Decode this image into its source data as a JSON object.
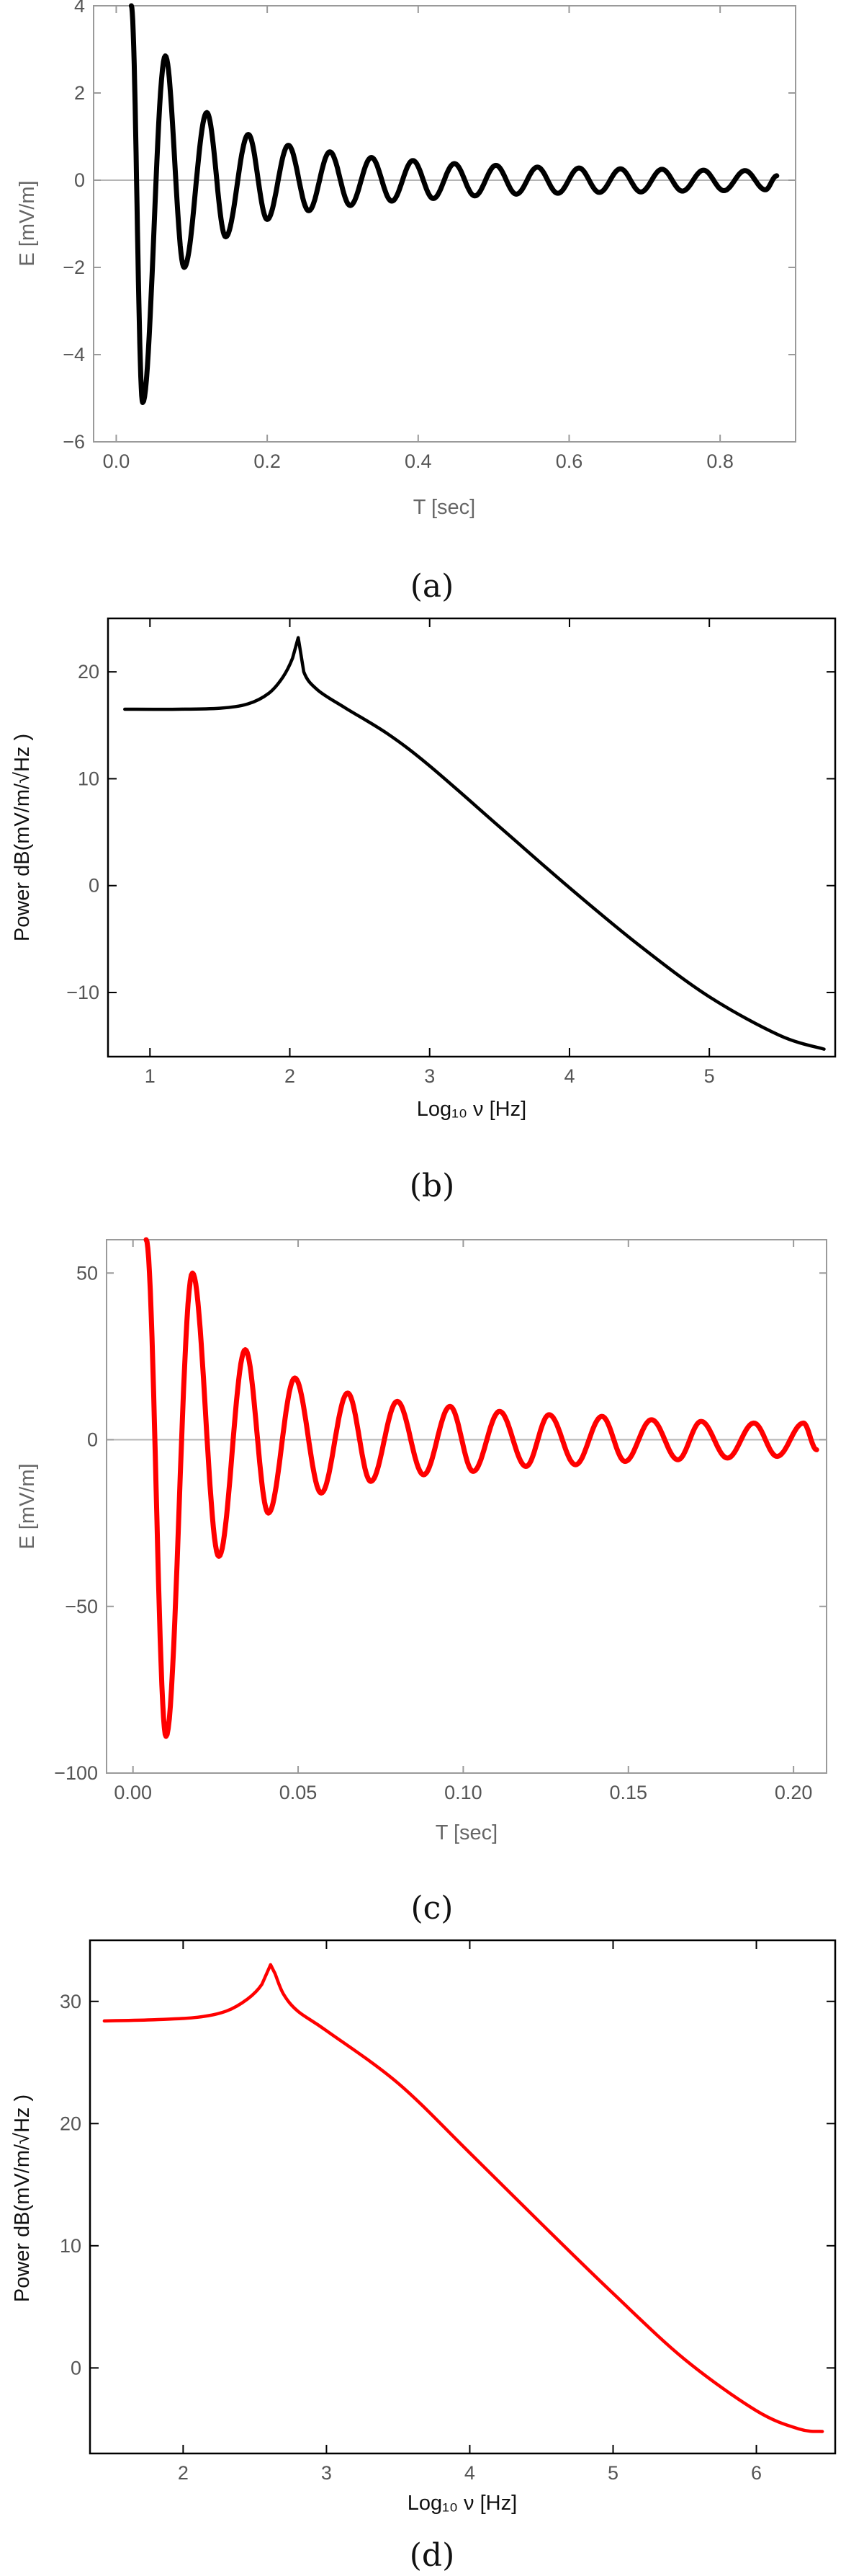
{
  "chart_data": [
    {
      "type": "line",
      "panel": "a",
      "caption": "(a)",
      "xlabel": "T [sec]",
      "ylabel": "E [mV/m]",
      "xlim": [
        -0.03,
        0.9
      ],
      "ylim": [
        -6,
        4
      ],
      "xticks": [
        "0.0",
        "0.2",
        "0.4",
        "0.6",
        "0.8"
      ],
      "xtick_values": [
        0.0,
        0.2,
        0.4,
        0.6,
        0.8
      ],
      "yticks": [
        "−6",
        "−4",
        "−2",
        "0",
        "2",
        "4"
      ],
      "ytick_values": [
        -6,
        -4,
        -2,
        0,
        2,
        4
      ],
      "color": "#000000",
      "series": [
        {
          "name": "E(T)",
          "model": "damped-oscillation",
          "x": [
            0.02,
            0.035,
            0.065,
            0.09,
            0.12,
            0.145,
            0.175,
            0.2,
            0.228,
            0.255,
            0.283,
            0.31,
            0.338,
            0.365,
            0.393,
            0.42,
            0.448,
            0.475,
            0.503,
            0.53,
            0.558,
            0.585,
            0.613,
            0.64,
            0.668,
            0.695,
            0.723,
            0.75,
            0.778,
            0.805,
            0.833,
            0.86,
            0.875
          ],
          "y": [
            4.0,
            -5.1,
            2.85,
            -2.0,
            1.55,
            -1.3,
            1.05,
            -0.9,
            0.8,
            -0.7,
            0.65,
            -0.58,
            0.52,
            -0.48,
            0.45,
            -0.42,
            0.38,
            -0.36,
            0.34,
            -0.32,
            0.3,
            -0.3,
            0.28,
            -0.28,
            0.26,
            -0.27,
            0.25,
            -0.25,
            0.23,
            -0.24,
            0.22,
            -0.22,
            0.1
          ]
        }
      ]
    },
    {
      "type": "line",
      "panel": "b",
      "caption": "(b)",
      "xlabel": "Log₁₀ ν [Hz]",
      "ylabel": "Power dB(mV/m/√Hz )",
      "xlim": [
        0.7,
        5.9
      ],
      "ylim": [
        -16,
        25
      ],
      "xticks": [
        "1",
        "2",
        "3",
        "4",
        "5"
      ],
      "xtick_values": [
        1,
        2,
        3,
        4,
        5
      ],
      "yticks": [
        "−10",
        "0",
        "10",
        "20"
      ],
      "ytick_values": [
        -10,
        0,
        10,
        20
      ],
      "color": "#000000",
      "series": [
        {
          "name": "Power",
          "x": [
            0.82,
            1.2,
            1.5,
            1.7,
            1.85,
            1.95,
            2.02,
            2.06,
            2.1,
            2.2,
            2.4,
            2.7,
            3.0,
            3.5,
            4.0,
            4.5,
            5.0,
            5.5,
            5.82
          ],
          "y": [
            16.5,
            16.5,
            16.6,
            17.0,
            18.0,
            19.5,
            21.3,
            23.2,
            20.0,
            18.3,
            16.6,
            14.2,
            11.2,
            5.5,
            -0.2,
            -5.6,
            -10.4,
            -14.0,
            -15.3
          ]
        }
      ]
    },
    {
      "type": "line",
      "panel": "c",
      "caption": "(c)",
      "xlabel": "T [sec]",
      "ylabel": "E [mV/m]",
      "xlim": [
        -0.008,
        0.21
      ],
      "ylim": [
        -100,
        60
      ],
      "xticks": [
        "0.00",
        "0.05",
        "0.10",
        "0.15",
        "0.20"
      ],
      "xtick_values": [
        0.0,
        0.05,
        0.1,
        0.15,
        0.2
      ],
      "yticks": [
        "−100",
        "−50",
        "0",
        "50"
      ],
      "ytick_values": [
        -100,
        -50,
        0,
        50
      ],
      "color": "#ff0000",
      "series": [
        {
          "name": "E(T)",
          "model": "damped-oscillation",
          "x": [
            0.004,
            0.01,
            0.018,
            0.026,
            0.034,
            0.041,
            0.049,
            0.057,
            0.065,
            0.072,
            0.08,
            0.088,
            0.096,
            0.103,
            0.111,
            0.119,
            0.126,
            0.134,
            0.142,
            0.149,
            0.157,
            0.165,
            0.172,
            0.18,
            0.188,
            0.195,
            0.203,
            0.207
          ],
          "y": [
            60,
            -89,
            50,
            -35,
            27,
            -22,
            18.5,
            -16,
            14,
            -12.5,
            11.5,
            -10.5,
            10,
            -9.5,
            8.5,
            -8,
            7.5,
            -7.5,
            7,
            -6.5,
            6,
            -6,
            5.5,
            -5.5,
            5,
            -5,
            5,
            -3
          ]
        }
      ]
    },
    {
      "type": "line",
      "panel": "d",
      "caption": "(d)",
      "xlabel": "Log₁₀ ν [Hz]",
      "ylabel": "Power dB(mV/m/√Hz )",
      "xlim": [
        1.35,
        6.55
      ],
      "ylim": [
        -7,
        35
      ],
      "xticks": [
        "2",
        "3",
        "4",
        "5",
        "6"
      ],
      "xtick_values": [
        2,
        3,
        4,
        5,
        6
      ],
      "yticks": [
        "0",
        "10",
        "20",
        "30"
      ],
      "ytick_values": [
        0,
        10,
        20,
        30
      ],
      "color": "#ff0000",
      "series": [
        {
          "name": "Power",
          "x": [
            1.45,
            1.8,
            2.1,
            2.3,
            2.45,
            2.55,
            2.61,
            2.64,
            2.7,
            2.8,
            3.0,
            3.5,
            4.0,
            4.5,
            5.0,
            5.5,
            6.0,
            6.3,
            6.46
          ],
          "y": [
            28.4,
            28.5,
            28.7,
            29.2,
            30.2,
            31.4,
            33.0,
            32.3,
            30.6,
            29.2,
            27.6,
            23.3,
            17.6,
            11.8,
            6.1,
            0.7,
            -3.5,
            -5.0,
            -5.2
          ]
        }
      ]
    }
  ]
}
